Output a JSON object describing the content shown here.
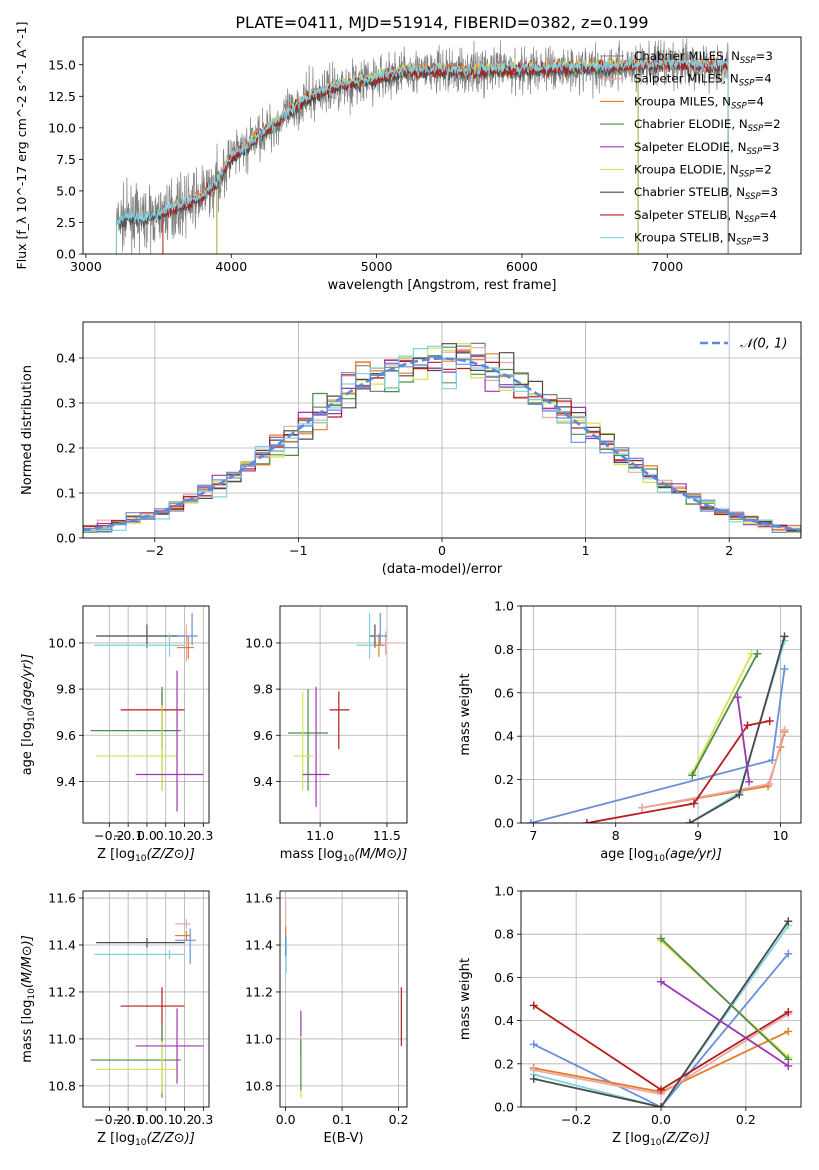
{
  "figure": {
    "title": "PLATE=0411, MJD=51914, FIBERID=0382, z=0.199"
  },
  "chart_data": [
    {
      "id": "spectrum",
      "type": "line",
      "title": "PLATE=0411, MJD=51914, FIBERID=0382, z=0.199",
      "xlabel": "wavelength [Angstrom, rest frame]",
      "ylabel": "Flux [f_λ 10^-17 erg cm^-2 s^-1 A^-1]",
      "xlim": [
        2980,
        7920
      ],
      "ylim": [
        0,
        17.2
      ],
      "xticks": [
        3000,
        4000,
        5000,
        6000,
        7000
      ],
      "yticks": [
        0.0,
        2.5,
        5.0,
        7.5,
        10.0,
        12.5,
        15.0
      ],
      "legend_position": "top-right",
      "data_envelope": {
        "x": [
          3200,
          3300,
          3400,
          3500,
          3600,
          3700,
          3800,
          3900,
          4000,
          4100,
          4200,
          4300,
          4400,
          4500,
          4700,
          5000,
          5200,
          5500,
          6000,
          6500,
          7000,
          7400,
          7650
        ],
        "y": [
          2.4,
          2.9,
          2.8,
          3.0,
          3.7,
          4.0,
          4.6,
          5.6,
          7.6,
          8.4,
          9.5,
          10.3,
          11.2,
          12.2,
          13.2,
          13.9,
          14.5,
          14.5,
          14.6,
          14.8,
          15.0,
          14.9,
          14.6
        ]
      },
      "series": [
        {
          "name": "Chabrier MILES, N_SSP=3",
          "color": "#808080",
          "start": 3210,
          "end": 7420
        },
        {
          "name": "Salpeter MILES, N_SSP=4",
          "color": "#e9a9a9",
          "start": 3530,
          "end": 7420
        },
        {
          "name": "Kroupa MILES, N_SSP=4",
          "color": "#e87b27",
          "start": 3530,
          "end": 7420
        },
        {
          "name": "Chabrier ELODIE, N_SSP=2",
          "color": "#4f8a4f",
          "start": 3900,
          "end": 6800
        },
        {
          "name": "Salpeter ELODIE, N_SSP=3",
          "color": "#9b37b0",
          "start": 3900,
          "end": 6800
        },
        {
          "name": "Kroupa ELODIE, N_SSP=2",
          "color": "#d8e24a",
          "start": 3900,
          "end": 6800
        },
        {
          "name": "Chabrier STELIB, N_SSP=3",
          "color": "#4a4a4a",
          "start": 3210,
          "end": 7420
        },
        {
          "name": "Salpeter STELIB, N_SSP=4",
          "color": "#b51d1d",
          "start": 3530,
          "end": 7420
        },
        {
          "name": "Kroupa STELIB, N_SSP=3",
          "color": "#7ed3e2",
          "start": 3210,
          "end": 7420
        }
      ]
    },
    {
      "id": "residuals",
      "type": "line",
      "xlabel": "(data-model)/error",
      "ylabel": "Normed distribution",
      "xlim": [
        -2.5,
        2.5
      ],
      "ylim": [
        0,
        0.48
      ],
      "xticks": [
        -2,
        -1,
        0,
        1,
        2
      ],
      "yticks": [
        0.0,
        0.1,
        0.2,
        0.3,
        0.4
      ],
      "legend": "𝒩(0, 1)",
      "legend_position": "top-right",
      "gaussian_color": "#5b8ad8",
      "bin_width": 0.1,
      "series_colors": [
        "#808080",
        "#e9a9a9",
        "#e87b27",
        "#4f8a4f",
        "#9b37b0",
        "#d8e24a",
        "#4a4a4a",
        "#b51d1d",
        "#7ed3e2",
        "#6a8fdc"
      ]
    },
    {
      "id": "age-vs-Z",
      "type": "scatter",
      "xlabel": "Z [log10(Z/Z⊙)]",
      "ylabel": "age  [log10(age/yr)]",
      "xlim": [
        -0.34,
        0.33
      ],
      "ylim": [
        9.22,
        10.16
      ],
      "xticks": [
        -0.2,
        -0.1,
        0.0,
        0.1,
        0.2,
        0.3
      ],
      "yticks": [
        9.4,
        9.6,
        9.8,
        10.0
      ],
      "points": [
        {
          "x": 0.0,
          "y": 10.03,
          "xerr": [
            0.27,
            0.2
          ],
          "yerr": [
            0.05,
            0.05
          ],
          "color": "#4a4a4a"
        },
        {
          "x": 0.12,
          "y": 9.99,
          "xerr": [
            0.4,
            0.08
          ],
          "yerr": [
            0.05,
            0.05
          ],
          "color": "#7ed3e2"
        },
        {
          "x": 0.21,
          "y": 9.98,
          "xerr": [
            0.05,
            0.02
          ],
          "yerr": [
            0.06,
            0.1
          ],
          "color": "#e9a9a9"
        },
        {
          "x": 0.22,
          "y": 9.98,
          "xerr": [
            0.06,
            0.03
          ],
          "yerr": [
            0.05,
            0.05
          ],
          "color": "#e87b27"
        },
        {
          "x": 0.24,
          "y": 10.03,
          "xerr": [
            0.08,
            0.03
          ],
          "yerr": [
            0.04,
            0.1
          ],
          "color": "#6a8fdc"
        },
        {
          "x": 0.08,
          "y": 9.71,
          "xerr": [
            0.22,
            0.12
          ],
          "yerr": [
            0.17,
            0.08
          ],
          "color": "#b51d1d"
        },
        {
          "x": 0.08,
          "y": 9.62,
          "xerr": [
            0.38,
            0.1
          ],
          "yerr": [
            0.26,
            0.19
          ],
          "color": "#4f8a4f"
        },
        {
          "x": 0.08,
          "y": 9.51,
          "xerr": [
            0.35,
            0.08
          ],
          "yerr": [
            0.15,
            0.22
          ],
          "color": "#d8e24a"
        },
        {
          "x": 0.16,
          "y": 9.43,
          "xerr": [
            0.22,
            0.14
          ],
          "yerr": [
            0.16,
            0.45
          ],
          "color": "#9b37b0"
        }
      ]
    },
    {
      "id": "age-vs-mass",
      "type": "scatter",
      "xlabel": "mass [log10(M/M⊙)]",
      "ylabel": "",
      "xlim": [
        10.7,
        11.65
      ],
      "ylim": [
        9.22,
        10.16
      ],
      "xticks": [
        11.0,
        11.5
      ],
      "yticks": [
        9.4,
        9.6,
        9.8,
        10.0
      ],
      "points": [
        {
          "x": 11.41,
          "y": 10.03,
          "xerr": [
            0.04,
            0.04
          ],
          "yerr": [
            0.05,
            0.05
          ],
          "color": "#4a4a4a"
        },
        {
          "x": 11.37,
          "y": 9.99,
          "xerr": [
            0.1,
            0.12
          ],
          "yerr": [
            0.06,
            0.14
          ],
          "color": "#7ed3e2"
        },
        {
          "x": 11.49,
          "y": 10.0,
          "xerr": [
            0.04,
            0.1
          ],
          "yerr": [
            0.05,
            0.05
          ],
          "color": "#e9a9a9"
        },
        {
          "x": 11.44,
          "y": 9.99,
          "xerr": [
            0.04,
            0.04
          ],
          "yerr": [
            0.05,
            0.05
          ],
          "color": "#e87b27"
        },
        {
          "x": 11.45,
          "y": 10.03,
          "xerr": [
            0.05,
            0.05
          ],
          "yerr": [
            0.04,
            0.1
          ],
          "color": "#6a8fdc"
        },
        {
          "x": 11.14,
          "y": 9.71,
          "xerr": [
            0.07,
            0.08
          ],
          "yerr": [
            0.17,
            0.08
          ],
          "color": "#b51d1d"
        },
        {
          "x": 10.91,
          "y": 9.61,
          "xerr": [
            0.15,
            0.15
          ],
          "yerr": [
            0.25,
            0.19
          ],
          "color": "#4f8a4f"
        },
        {
          "x": 10.87,
          "y": 9.51,
          "xerr": [
            0.07,
            0.08
          ],
          "yerr": [
            0.15,
            0.28
          ],
          "color": "#d8e24a"
        },
        {
          "x": 10.97,
          "y": 9.43,
          "xerr": [
            0.1,
            0.1
          ],
          "yerr": [
            0.14,
            0.38
          ],
          "color": "#9b37b0"
        }
      ]
    },
    {
      "id": "mass-weight-vs-age",
      "type": "line",
      "xlabel": "age  [log10(age/yr)]",
      "ylabel": "mass weight",
      "xlim": [
        6.85,
        10.25
      ],
      "ylim": [
        0,
        1.0
      ],
      "xticks": [
        7,
        8,
        9,
        10
      ],
      "yticks": [
        0.0,
        0.2,
        0.4,
        0.6,
        0.8,
        1.0
      ],
      "series": [
        {
          "color": "#6a8fdc",
          "x": [
            6.97,
            9.9,
            10.05
          ],
          "y": [
            0.0,
            0.29,
            0.71
          ]
        },
        {
          "color": "#e87b27",
          "x": [
            8.32,
            9.85,
            10.0,
            10.05
          ],
          "y": [
            0.07,
            0.17,
            0.35,
            0.42
          ]
        },
        {
          "color": "#e9a9a9",
          "x": [
            8.32,
            9.87,
            10.05
          ],
          "y": [
            0.07,
            0.18,
            0.43
          ]
        },
        {
          "color": "#7ed3e2",
          "x": [
            8.9,
            9.5,
            10.05
          ],
          "y": [
            0.0,
            0.14,
            0.84
          ]
        },
        {
          "color": "#4a4a4a",
          "x": [
            8.9,
            9.5,
            10.05
          ],
          "y": [
            0.0,
            0.13,
            0.86
          ]
        },
        {
          "color": "#b51d1d",
          "x": [
            7.65,
            8.95,
            9.6,
            9.87
          ],
          "y": [
            0.0,
            0.09,
            0.45,
            0.47
          ]
        },
        {
          "color": "#d8e24a",
          "x": [
            8.93,
            9.65
          ],
          "y": [
            0.23,
            0.78
          ]
        },
        {
          "color": "#4f8a4f",
          "x": [
            8.93,
            9.72
          ],
          "y": [
            0.22,
            0.78
          ]
        },
        {
          "color": "#9b37b0",
          "x": [
            9.48,
            9.62
          ],
          "y": [
            0.58,
            0.19
          ]
        }
      ]
    },
    {
      "id": "mass-vs-Z",
      "type": "scatter",
      "xlabel": "Z [log10(Z/Z⊙)]",
      "ylabel": "mass [log10(M/M⊙)]",
      "xlim": [
        -0.34,
        0.33
      ],
      "ylim": [
        10.71,
        11.63
      ],
      "xticks": [
        -0.2,
        -0.1,
        0.0,
        0.1,
        0.2,
        0.3
      ],
      "yticks": [
        10.8,
        11.0,
        11.2,
        11.4,
        11.6
      ],
      "points": [
        {
          "x": 0.0,
          "y": 11.41,
          "xerr": [
            0.27,
            0.2
          ],
          "yerr": [
            0.02,
            0.02
          ],
          "color": "#4a4a4a"
        },
        {
          "x": 0.12,
          "y": 11.36,
          "xerr": [
            0.4,
            0.08
          ],
          "yerr": [
            0.02,
            0.02
          ],
          "color": "#7ed3e2"
        },
        {
          "x": 0.21,
          "y": 11.49,
          "xerr": [
            0.06,
            0.02
          ],
          "yerr": [
            0.02,
            0.02
          ],
          "color": "#e9a9a9"
        },
        {
          "x": 0.21,
          "y": 11.44,
          "xerr": [
            0.06,
            0.02
          ],
          "yerr": [
            0.02,
            0.02
          ],
          "color": "#e87b27"
        },
        {
          "x": 0.23,
          "y": 11.42,
          "xerr": [
            0.08,
            0.03
          ],
          "yerr": [
            0.1,
            0.05
          ],
          "color": "#6a8fdc"
        },
        {
          "x": 0.08,
          "y": 11.14,
          "xerr": [
            0.22,
            0.12
          ],
          "yerr": [
            0.15,
            0.08
          ],
          "color": "#b51d1d"
        },
        {
          "x": 0.08,
          "y": 10.91,
          "xerr": [
            0.38,
            0.1
          ],
          "yerr": [
            0.16,
            0.16
          ],
          "color": "#4f8a4f"
        },
        {
          "x": 0.08,
          "y": 10.87,
          "xerr": [
            0.35,
            0.08
          ],
          "yerr": [
            0.1,
            0.12
          ],
          "color": "#d8e24a"
        },
        {
          "x": 0.16,
          "y": 10.97,
          "xerr": [
            0.22,
            0.14
          ],
          "yerr": [
            0.16,
            0.16
          ],
          "color": "#9b37b0"
        }
      ]
    },
    {
      "id": "mass-vs-EBV",
      "type": "scatter",
      "xlabel": "E(B-V)",
      "ylabel": "",
      "xlim": [
        -0.01,
        0.215
      ],
      "ylim": [
        10.71,
        11.63
      ],
      "xticks": [
        0.0,
        0.1,
        0.2
      ],
      "yticks": [
        10.8,
        11.0,
        11.2,
        11.4,
        11.6
      ],
      "points": [
        {
          "x": 0.0,
          "y": 11.48,
          "yerr": [
            0.08,
            0.12
          ],
          "color": "#e9a9a9"
        },
        {
          "x": 0.0,
          "y": 11.43,
          "yerr": [
            0.05,
            0.05
          ],
          "color": "#e87b27"
        },
        {
          "x": 0.001,
          "y": 11.36,
          "yerr": [
            0.08,
            0.08
          ],
          "color": "#7ed3e2"
        },
        {
          "x": 0.0,
          "y": 11.4,
          "yerr": [
            0.05,
            0.04
          ],
          "color": "#6a8fdc"
        },
        {
          "x": 0.027,
          "y": 11.05,
          "yerr": [
            0.12,
            0.07
          ],
          "color": "#9b37b0"
        },
        {
          "x": 0.027,
          "y": 10.87,
          "yerr": [
            0.12,
            0.14
          ],
          "color": "#d8e24a"
        },
        {
          "x": 0.027,
          "y": 10.9,
          "yerr": [
            0.12,
            0.1
          ],
          "color": "#4f8a4f"
        },
        {
          "x": 0.205,
          "y": 11.09,
          "yerr": [
            0.12,
            0.13
          ],
          "color": "#b51d1d"
        }
      ]
    },
    {
      "id": "mass-weight-vs-Z",
      "type": "line",
      "xlabel": "Z [log10(Z/Z⊙)]",
      "ylabel": "mass weight",
      "xlim": [
        -0.33,
        0.33
      ],
      "ylim": [
        0,
        1.0
      ],
      "xticks": [
        -0.2,
        0.0,
        0.2
      ],
      "yticks": [
        0.0,
        0.2,
        0.4,
        0.6,
        0.8,
        1.0
      ],
      "series": [
        {
          "color": "#6a8fdc",
          "x": [
            -0.3,
            0.0,
            0.3
          ],
          "y": [
            0.29,
            0.0,
            0.71
          ]
        },
        {
          "color": "#e87b27",
          "x": [
            -0.3,
            0.0,
            0.3
          ],
          "y": [
            0.18,
            0.07,
            0.35
          ]
        },
        {
          "color": "#e9a9a9",
          "x": [
            -0.3,
            0.0,
            0.3
          ],
          "y": [
            0.17,
            0.06,
            0.43
          ]
        },
        {
          "color": "#7ed3e2",
          "x": [
            -0.3,
            0.0,
            0.3
          ],
          "y": [
            0.15,
            0.0,
            0.84
          ]
        },
        {
          "color": "#4a4a4a",
          "x": [
            -0.3,
            0.0,
            0.3
          ],
          "y": [
            0.13,
            0.0,
            0.86
          ]
        },
        {
          "color": "#b51d1d",
          "x": [
            -0.3,
            0.0,
            0.3
          ],
          "y": [
            0.47,
            0.08,
            0.44
          ]
        },
        {
          "color": "#d8e24a",
          "x": [
            0.0,
            0.3
          ],
          "y": [
            0.77,
            0.23
          ]
        },
        {
          "color": "#4f8a4f",
          "x": [
            0.0,
            0.3
          ],
          "y": [
            0.78,
            0.22
          ]
        },
        {
          "color": "#9b37b0",
          "x": [
            0.0,
            0.3
          ],
          "y": [
            0.58,
            0.19
          ]
        }
      ]
    }
  ]
}
